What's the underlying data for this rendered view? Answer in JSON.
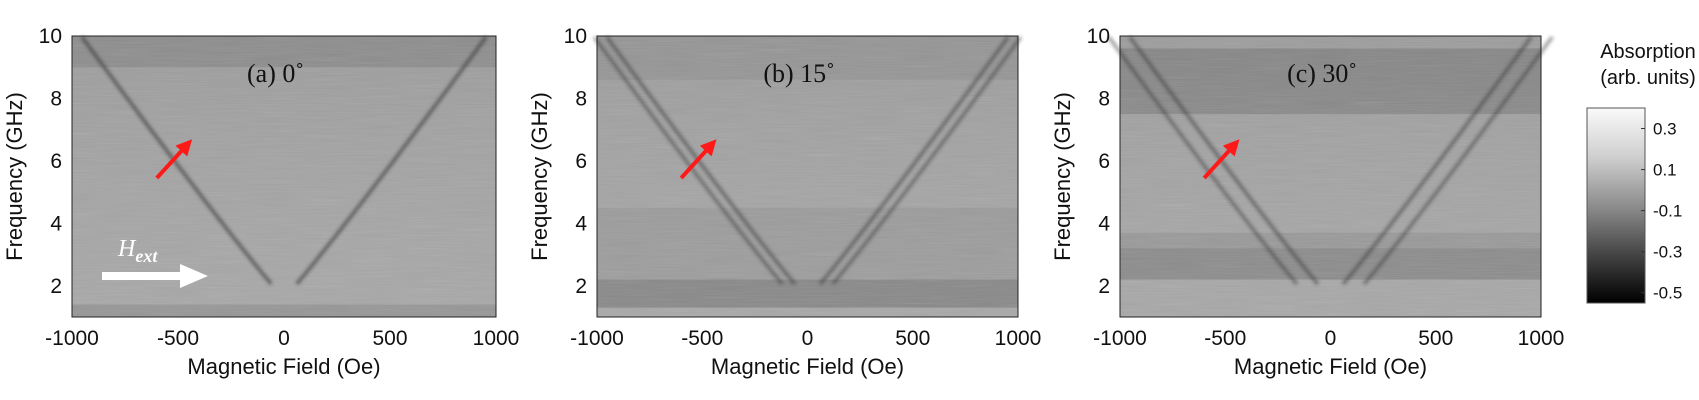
{
  "chart_data": [
    {
      "type": "heatmap",
      "title": "(a) 0˚",
      "xlabel": "Magnetic Field (Oe)",
      "ylabel": "Frequency (GHz)",
      "xlim": [
        -1000,
        1000
      ],
      "ylim": [
        1,
        10
      ],
      "xticks": [
        "-1000",
        "-500",
        "0",
        "500",
        "1000"
      ],
      "yticks": [
        "2",
        "4",
        "6",
        "8",
        "10"
      ],
      "annotation": {
        "label": "H",
        "subscript": "ext"
      }
    },
    {
      "type": "heatmap",
      "title": "(b) 15˚",
      "xlabel": "Magnetic Field (Oe)",
      "ylabel": "Frequency (GHz)",
      "xlim": [
        -1000,
        1000
      ],
      "ylim": [
        1,
        10
      ],
      "xticks": [
        "-1000",
        "-500",
        "0",
        "500",
        "1000"
      ],
      "yticks": [
        "2",
        "4",
        "6",
        "8",
        "10"
      ]
    },
    {
      "type": "heatmap",
      "title": "(c) 30˚",
      "xlabel": "Magnetic Field (Oe)",
      "ylabel": "Frequency (GHz)",
      "xlim": [
        -1000,
        1000
      ],
      "ylim": [
        1,
        10
      ],
      "xticks": [
        "-1000",
        "-500",
        "0",
        "500",
        "1000"
      ],
      "yticks": [
        "2",
        "4",
        "6",
        "8",
        "10"
      ]
    }
  ],
  "colorbar": {
    "title_line1": "Absorption",
    "title_line2": "(arb. units)",
    "ticks": [
      "0.3",
      "0.1",
      "-0.1",
      "-0.3",
      "-0.5"
    ],
    "range": [
      -0.55,
      0.4
    ]
  },
  "colors": {
    "background_gray": "#a4a4a4",
    "arrow_red": "#ff1a1a",
    "arrow_white": "#ffffff"
  }
}
